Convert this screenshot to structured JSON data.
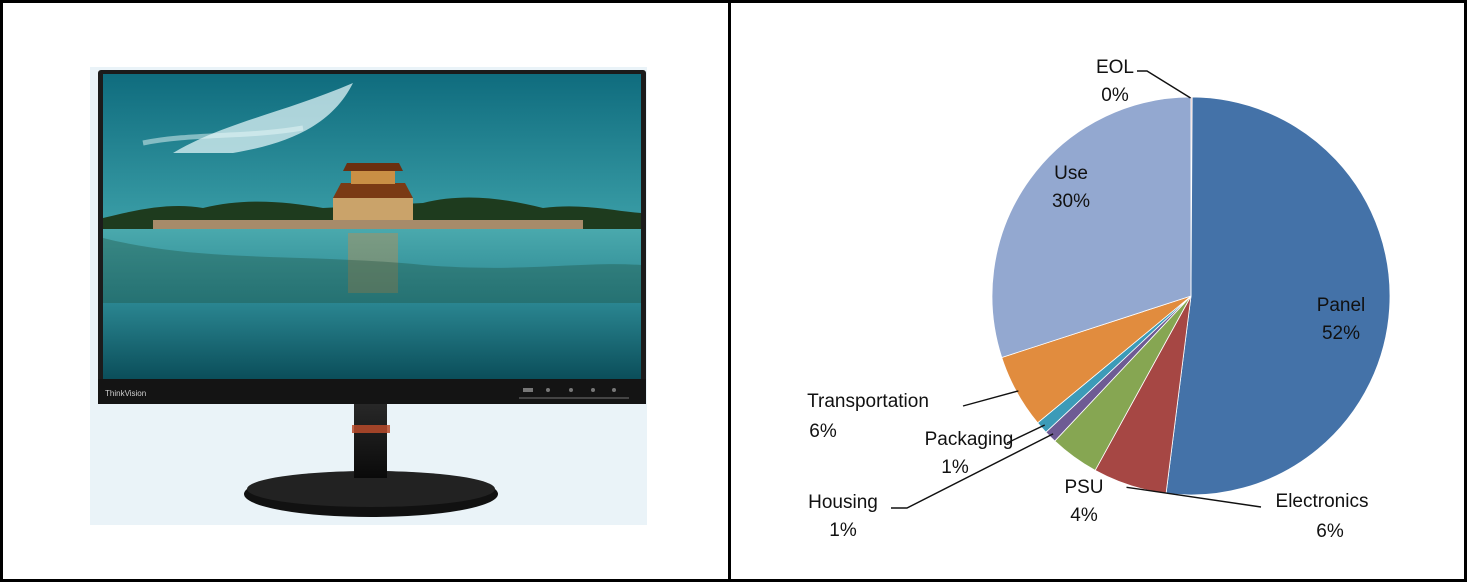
{
  "left_panel": {
    "product_image": {
      "brand_text": "ThinkVision"
    }
  },
  "chart_data": {
    "type": "pie",
    "title": "",
    "categories": [
      "Panel",
      "Electronics",
      "PSU",
      "Housing",
      "Packaging",
      "Transportation",
      "Use",
      "EOL"
    ],
    "values": [
      52,
      6,
      4,
      1,
      1,
      6,
      30,
      0
    ],
    "labels": [
      "52%",
      "6%",
      "4%",
      "1%",
      "1%",
      "6%",
      "30%",
      "0%"
    ],
    "colors": [
      "#4472A8",
      "#A64744",
      "#86A652",
      "#6E5B94",
      "#3C9BB8",
      "#E18C3E",
      "#93A8D0",
      "#E0A8A3"
    ],
    "start_angle_deg": 0,
    "direction": "clockwise",
    "legend": "none"
  }
}
